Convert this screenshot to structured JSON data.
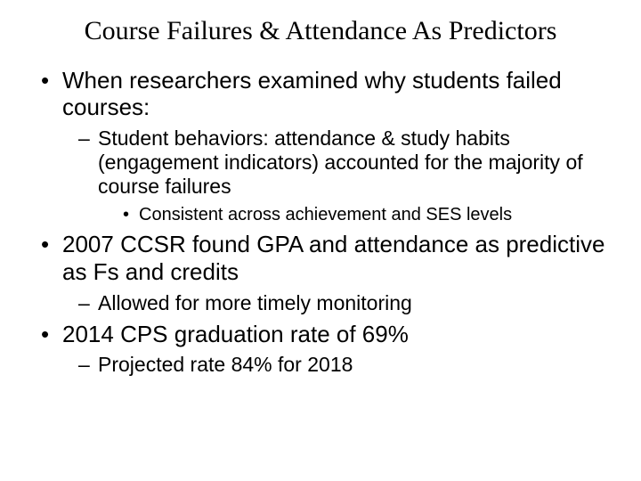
{
  "title": "Course Failures & Attendance As Predictors",
  "bullets": {
    "b1": "When researchers examined why students failed courses:",
    "b1_s1": "Student behaviors: attendance & study habits (engagement indicators) accounted for the majority of course failures",
    "b1_s1_t1": "Consistent across achievement and SES levels",
    "b2": "2007 CCSR found GPA and attendance as predictive as Fs and credits",
    "b2_s1": "Allowed for more timely monitoring",
    "b3": "2014 CPS graduation rate of 69%",
    "b3_s1": "Projected rate 84% for 2018"
  },
  "style": {
    "background_color": "#ffffff",
    "text_color": "#000000",
    "title_font_family": "Georgia, 'Times New Roman', serif",
    "body_font_family": "Arial, Helvetica, sans-serif",
    "title_fontsize_pt": 30,
    "lvl1_fontsize_pt": 26,
    "lvl2_fontsize_pt": 23,
    "lvl3_fontsize_pt": 20,
    "lvl1_marker": "•",
    "lvl2_marker": "–",
    "lvl3_marker": "•"
  }
}
